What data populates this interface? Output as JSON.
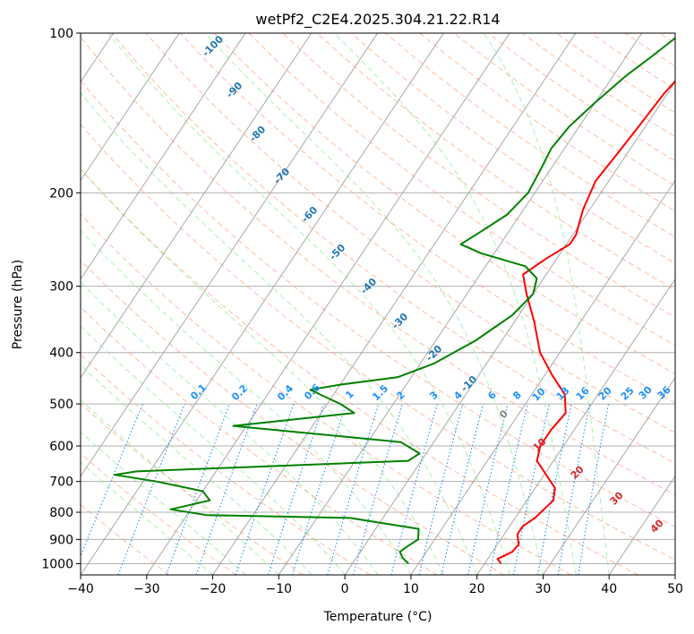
{
  "chart_data": {
    "type": "line",
    "subtype": "skew-t log-p diagram",
    "title": "wetPf2_C2E4.2025.304.21.22.R14",
    "xlabel": "Temperature (°C)",
    "ylabel": "Pressure (hPa)",
    "xlim": [
      -40,
      50
    ],
    "ylim": [
      1050,
      100
    ],
    "y_scale": "log",
    "x_ticks": [
      -40,
      -30,
      -20,
      -10,
      0,
      10,
      20,
      30,
      40,
      50
    ],
    "y_ticks": [
      100,
      200,
      300,
      400,
      500,
      600,
      700,
      800,
      900,
      1000
    ],
    "grid": true,
    "colors": {
      "temperature": "#ff0000",
      "dewpoint": "#008000",
      "isotherm": "#a0a0a0",
      "dry_adiabat": "#ffa07a",
      "moist_adiabat": "#90ee90",
      "mixing_ratio": "#1e90ff",
      "isotherm_label": "#1f77b4",
      "adiabat_label": "#d62728"
    },
    "series": [
      {
        "key": "temperature",
        "color": "#ff0000",
        "points": [
          [
            22.5,
            1000
          ],
          [
            21.5,
            980
          ],
          [
            23,
            950
          ],
          [
            23.2,
            920
          ],
          [
            22,
            880
          ],
          [
            22,
            850
          ],
          [
            23,
            820
          ],
          [
            24,
            760
          ],
          [
            23,
            720
          ],
          [
            21,
            690
          ],
          [
            17.5,
            640
          ],
          [
            16.5,
            600
          ],
          [
            16.5,
            560
          ],
          [
            17,
            520
          ],
          [
            15,
            480
          ],
          [
            11,
            440
          ],
          [
            7,
            400
          ],
          [
            3,
            350
          ],
          [
            -1,
            310
          ],
          [
            -3.5,
            285
          ],
          [
            -1.5,
            265
          ],
          [
            0.5,
            250
          ],
          [
            0.5,
            240
          ],
          [
            -1,
            215
          ],
          [
            -2,
            190
          ],
          [
            -1.5,
            170
          ],
          [
            -1,
            150
          ],
          [
            -0.5,
            130
          ],
          [
            0.5,
            115
          ],
          [
            3,
            103
          ],
          [
            5,
            100
          ]
        ]
      },
      {
        "key": "dewpoint",
        "color": "#008000",
        "points": [
          [
            8.5,
            1000
          ],
          [
            7,
            975
          ],
          [
            6,
            950
          ],
          [
            6.5,
            930
          ],
          [
            7.5,
            900
          ],
          [
            6.5,
            860
          ],
          [
            -5,
            820
          ],
          [
            -27,
            810
          ],
          [
            -33,
            790
          ],
          [
            -28,
            760
          ],
          [
            -30,
            730
          ],
          [
            -38,
            700
          ],
          [
            -45,
            680
          ],
          [
            -42,
            670
          ],
          [
            -2,
            640
          ],
          [
            -1,
            620
          ],
          [
            -5,
            590
          ],
          [
            -32,
            550
          ],
          [
            -15,
            520
          ],
          [
            -18,
            500
          ],
          [
            -22,
            480
          ],
          [
            -24,
            470
          ],
          [
            -20,
            460
          ],
          [
            -12,
            445
          ],
          [
            -8,
            420
          ],
          [
            -4,
            380
          ],
          [
            -1,
            340
          ],
          [
            0,
            310
          ],
          [
            -1,
            290
          ],
          [
            -4,
            275
          ],
          [
            -12,
            260
          ],
          [
            -16,
            250
          ],
          [
            -14,
            235
          ],
          [
            -12,
            220
          ],
          [
            -11,
            200
          ],
          [
            -11.5,
            180
          ],
          [
            -12,
            165
          ],
          [
            -11.5,
            150
          ],
          [
            -10,
            135
          ],
          [
            -8,
            120
          ],
          [
            -6,
            110
          ],
          [
            -4,
            100
          ]
        ]
      }
    ],
    "isotherm_labels": [
      "-100",
      "-90",
      "-80",
      "-70",
      "-60",
      "-50",
      "-40",
      "-30",
      "-20",
      "-10",
      "0"
    ],
    "dry_adiabat_labels": [
      "10",
      "20",
      "30",
      "40"
    ],
    "mixing_ratio_labels": [
      "0.1",
      "0.2",
      "0.4",
      "0.6",
      "1",
      "1.5",
      "2",
      "3",
      "4",
      "6",
      "8",
      "10",
      "13",
      "16",
      "20",
      "25",
      "30",
      "36"
    ]
  }
}
